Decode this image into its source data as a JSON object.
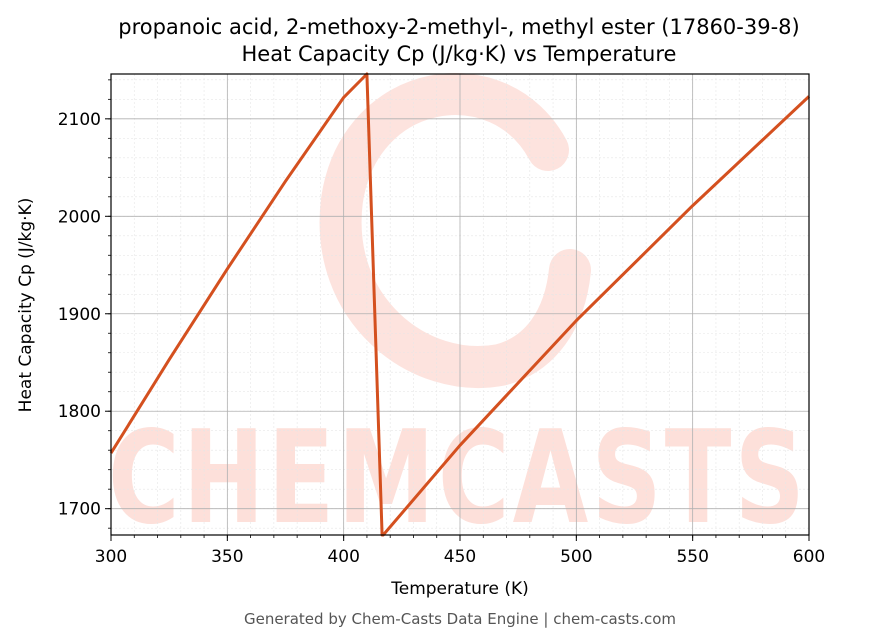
{
  "chart_data": {
    "type": "line",
    "title": "propanoic acid, 2-methoxy-2-methyl-, methyl ester (17860-39-8)",
    "subtitle": "Heat Capacity Cp (J/kg·K) vs Temperature",
    "xlabel": "Temperature (K)",
    "ylabel": "Heat Capacity Cp (J/kg·K)",
    "xlim": [
      300,
      600
    ],
    "ylim": [
      1673,
      2146
    ],
    "x_ticks": [
      300,
      350,
      400,
      450,
      500,
      550,
      600
    ],
    "y_ticks": [
      1700,
      1800,
      1900,
      2000,
      2100
    ],
    "grid": true,
    "line_color": "#d4501f",
    "series": [
      {
        "x": [
          300,
          325,
          350,
          375,
          400,
          410,
          416.5,
          417,
          450,
          500,
          550,
          600
        ],
        "values": [
          1757,
          1853,
          1946,
          2036,
          2122,
          2146,
          1673,
          1673,
          1765,
          1893,
          2011,
          2123
        ]
      }
    ]
  },
  "watermark": {
    "text": "CHEMCASTS",
    "color": "#fde0da"
  },
  "footer": "Generated by Chem-Casts Data Engine | chem-casts.com"
}
